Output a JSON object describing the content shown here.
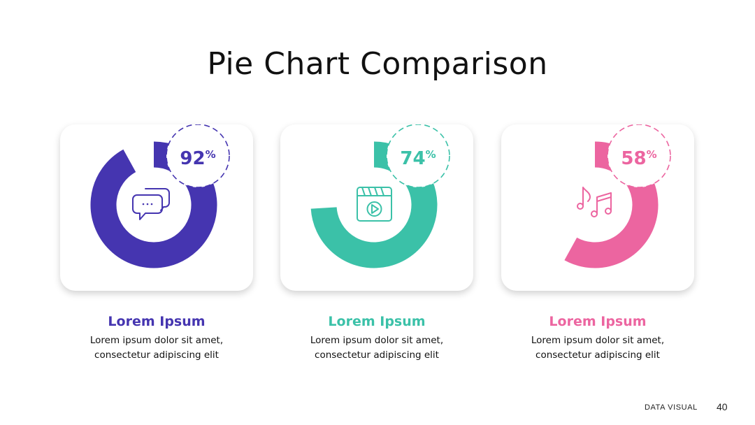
{
  "title": "Pie Chart Comparison",
  "chart_data": [
    {
      "type": "pie",
      "value": 92,
      "percent_sign": "%",
      "color": "#4535b0",
      "icon": "chat-bubbles-icon",
      "label": "Lorem Ipsum",
      "description": [
        "Lorem ipsum dolor sit amet,",
        "consectetur adipiscing elit"
      ]
    },
    {
      "type": "pie",
      "value": 74,
      "percent_sign": "%",
      "color": "#3bc1a8",
      "icon": "video-player-icon",
      "label": "Lorem Ipsum",
      "description": [
        "Lorem ipsum dolor sit amet,",
        "consectetur adipiscing elit"
      ]
    },
    {
      "type": "pie",
      "value": 58,
      "percent_sign": "%",
      "color": "#ec65a0",
      "icon": "music-notes-icon",
      "label": "Lorem Ipsum",
      "description": [
        "Lorem ipsum dolor sit amet,",
        "consectetur adipiscing elit"
      ]
    }
  ],
  "footer": {
    "label": "DATA VISUAL",
    "page": "40"
  }
}
